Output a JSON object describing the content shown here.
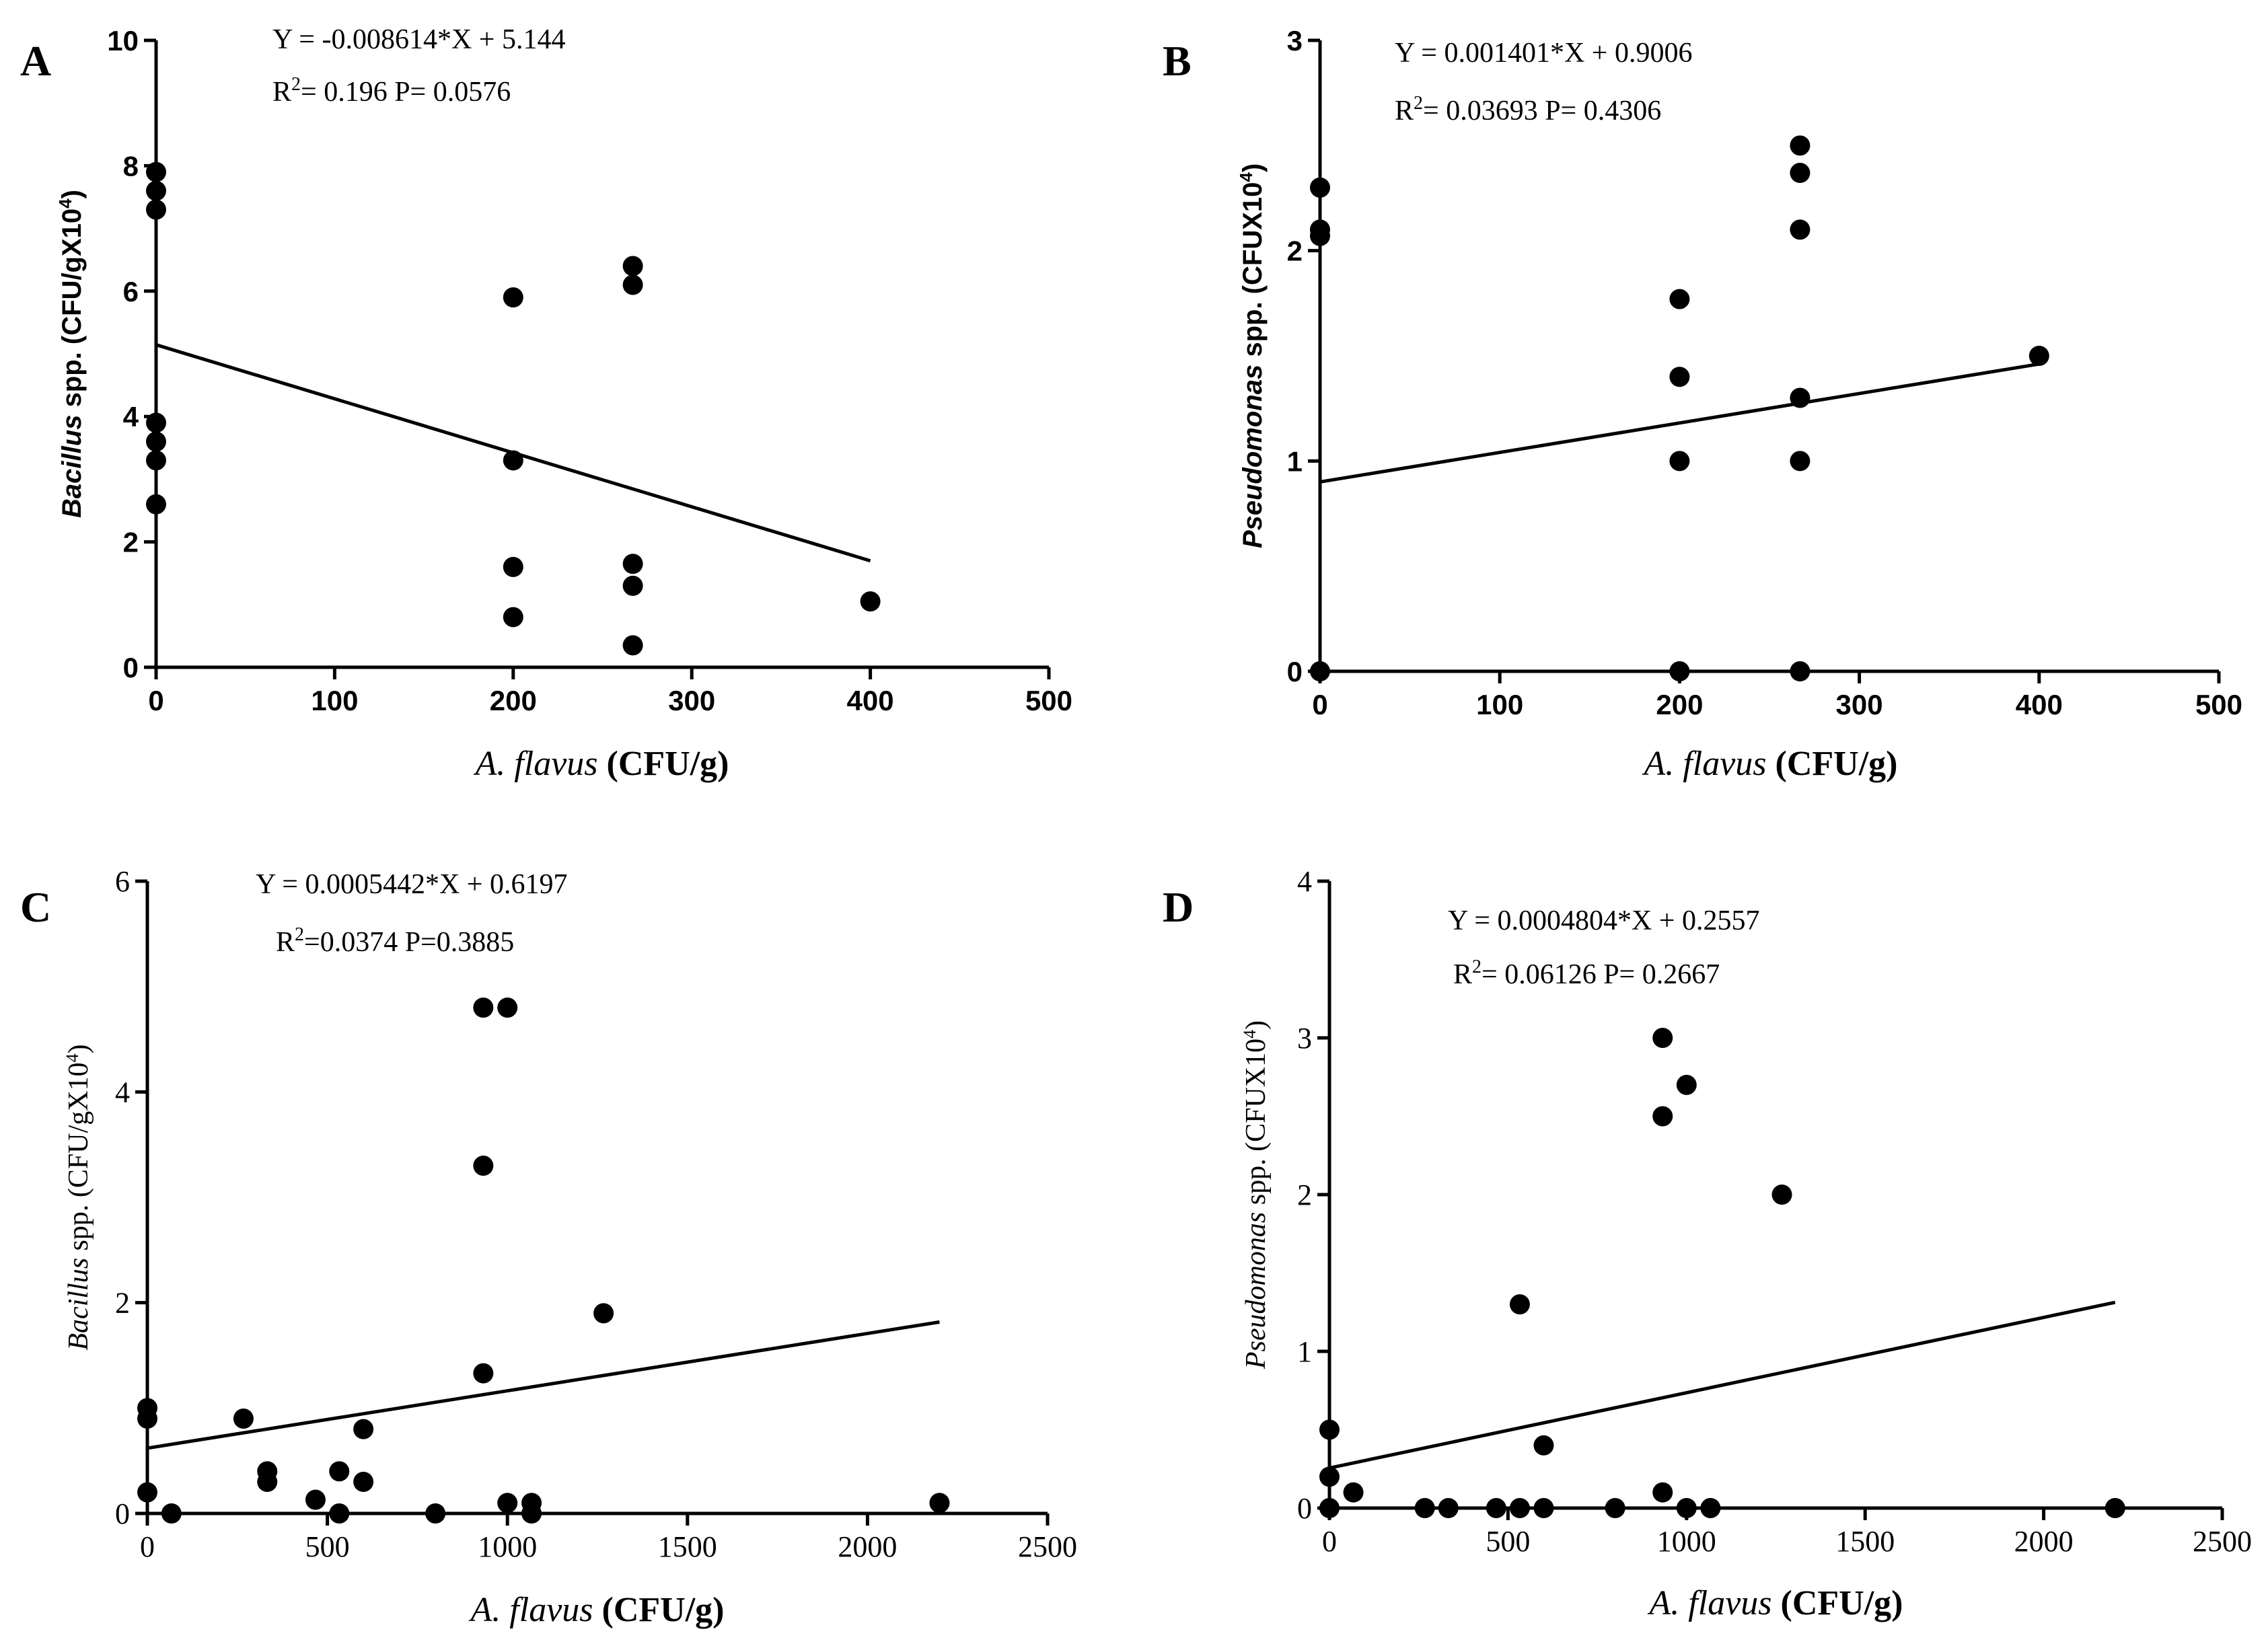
{
  "chart_data": [
    {
      "panel": "A",
      "type": "scatter",
      "equation": "Y = -0.008614*X + 5.144",
      "stats": "= 0.196   P= 0.0576",
      "r2_label": "R",
      "r2_sup": "2",
      "xlabel_italic": "A. flavus",
      "xlabel_rest": " (CFU/g)",
      "ylabel_italic": "Bacillus",
      "ylabel_rest": " spp. (CFU/gX10",
      "ylabel_sup": "4",
      "ylabel_close": ")",
      "xlim": [
        0,
        500
      ],
      "ylim": [
        0,
        10
      ],
      "xticks": [
        "0",
        "100",
        "200",
        "300",
        "400",
        "500"
      ],
      "yticks": [
        "0",
        "2",
        "4",
        "6",
        "8",
        "10"
      ],
      "xtick_values": [
        0,
        100,
        200,
        300,
        400,
        500
      ],
      "ytick_values": [
        0,
        2,
        4,
        6,
        8,
        10
      ],
      "regression": {
        "slope": -0.008614,
        "intercept": 5.144,
        "x_range": [
          0,
          400
        ]
      },
      "points": [
        [
          0,
          7.9
        ],
        [
          0,
          7.6
        ],
        [
          0,
          7.3
        ],
        [
          0,
          3.9
        ],
        [
          0,
          3.6
        ],
        [
          0,
          3.3
        ],
        [
          0,
          2.6
        ],
        [
          200,
          5.9
        ],
        [
          200,
          3.3
        ],
        [
          200,
          1.6
        ],
        [
          200,
          0.8
        ],
        [
          267,
          6.4
        ],
        [
          267,
          6.1
        ],
        [
          267,
          1.65
        ],
        [
          267,
          1.3
        ],
        [
          267,
          0.35
        ],
        [
          400,
          1.05
        ]
      ]
    },
    {
      "panel": "B",
      "type": "scatter",
      "equation": "Y = 0.001401*X + 0.9006",
      "stats": "= 0.03693   P= 0.4306",
      "r2_label": "R",
      "r2_sup": "2",
      "xlabel_italic": "A. flavus",
      "xlabel_rest": " (CFU/g)",
      "ylabel_italic": "Pseudomonas",
      "ylabel_rest": " spp. (CFUX10",
      "ylabel_sup": "4",
      "ylabel_close": ")",
      "xlim": [
        0,
        500
      ],
      "ylim": [
        0,
        3
      ],
      "xticks": [
        "0",
        "100",
        "200",
        "300",
        "400",
        "500"
      ],
      "yticks": [
        "0",
        "1",
        "2",
        "3"
      ],
      "xtick_values": [
        0,
        100,
        200,
        300,
        400,
        500
      ],
      "ytick_values": [
        0,
        1,
        2,
        3
      ],
      "regression": {
        "slope": 0.001401,
        "intercept": 0.9006,
        "x_range": [
          0,
          400
        ]
      },
      "points": [
        [
          0,
          2.3
        ],
        [
          0,
          2.1
        ],
        [
          0,
          2.07
        ],
        [
          0,
          0
        ],
        [
          200,
          1.77
        ],
        [
          200,
          1.4
        ],
        [
          200,
          1.0
        ],
        [
          200,
          0
        ],
        [
          267,
          2.5
        ],
        [
          267,
          2.37
        ],
        [
          267,
          2.1
        ],
        [
          267,
          1.3
        ],
        [
          267,
          1.0
        ],
        [
          267,
          0
        ],
        [
          400,
          1.5
        ]
      ]
    },
    {
      "panel": "C",
      "type": "scatter",
      "equation": "Y = 0.0005442*X + 0.6197",
      "stats": "=0.0374  P=0.3885",
      "r2_label": "R",
      "r2_sup": "2",
      "xlabel_italic": "A. flavus",
      "xlabel_rest": " (CFU/g)",
      "ylabel_italic": "Bacillus",
      "ylabel_rest": " spp. (CFU/gX10",
      "ylabel_sup": "4",
      "ylabel_close": ")",
      "xlim": [
        0,
        2500
      ],
      "ylim": [
        0,
        6
      ],
      "xticks": [
        "0",
        "500",
        "1000",
        "1500",
        "2000",
        "2500"
      ],
      "yticks": [
        "0",
        "2",
        "4",
        "6"
      ],
      "xtick_values": [
        0,
        500,
        1000,
        1500,
        2000,
        2500
      ],
      "ytick_values": [
        0,
        2,
        4,
        6
      ],
      "regression": {
        "slope": 0.0005442,
        "intercept": 0.6197,
        "x_range": [
          0,
          2200
        ]
      },
      "points": [
        [
          0,
          1.0
        ],
        [
          0,
          0.9
        ],
        [
          0,
          0.2
        ],
        [
          67,
          0.0
        ],
        [
          267,
          0.9
        ],
        [
          333,
          0.4
        ],
        [
          333,
          0.3
        ],
        [
          467,
          0.13
        ],
        [
          533,
          0.4
        ],
        [
          533,
          0.0
        ],
        [
          600,
          0.8
        ],
        [
          600,
          0.3
        ],
        [
          800,
          0.0
        ],
        [
          933,
          4.8
        ],
        [
          933,
          3.3
        ],
        [
          933,
          1.33
        ],
        [
          1000,
          4.8
        ],
        [
          1000,
          0.1
        ],
        [
          1067,
          0.1
        ],
        [
          1067,
          0.0
        ],
        [
          1267,
          1.9
        ],
        [
          2200,
          0.1
        ]
      ]
    },
    {
      "panel": "D",
      "type": "scatter",
      "equation": "Y = 0.0004804*X + 0.2557",
      "stats": "= 0.06126   P= 0.2667",
      "r2_label": "R",
      "r2_sup": "2",
      "xlabel_italic": "A. flavus",
      "xlabel_rest": " (CFU/g)",
      "ylabel_italic": "Pseudomonas",
      "ylabel_rest": " spp. (CFUX10",
      "ylabel_sup": "4",
      "ylabel_close": ")",
      "xlim": [
        0,
        2500
      ],
      "ylim": [
        0,
        4
      ],
      "xticks": [
        "0",
        "500",
        "1000",
        "1500",
        "2000",
        "2500"
      ],
      "yticks": [
        "0",
        "1",
        "2",
        "3",
        "4"
      ],
      "xtick_values": [
        0,
        500,
        1000,
        1500,
        2000,
        2500
      ],
      "ytick_values": [
        0,
        1,
        2,
        3,
        4
      ],
      "regression": {
        "slope": 0.0004804,
        "intercept": 0.2557,
        "x_range": [
          0,
          2200
        ]
      },
      "points": [
        [
          0,
          0.5
        ],
        [
          0,
          0.2
        ],
        [
          0,
          0.0
        ],
        [
          67,
          0.1
        ],
        [
          267,
          0.0
        ],
        [
          333,
          0.0
        ],
        [
          467,
          0.0
        ],
        [
          533,
          1.3
        ],
        [
          533,
          0.0
        ],
        [
          600,
          0.4
        ],
        [
          600,
          0.0
        ],
        [
          800,
          0.0
        ],
        [
          933,
          3.0
        ],
        [
          933,
          2.5
        ],
        [
          933,
          0.1
        ],
        [
          1000,
          2.7
        ],
        [
          1000,
          0.0
        ],
        [
          1067,
          0.0
        ],
        [
          1267,
          2.0
        ],
        [
          2200,
          0.0
        ]
      ]
    }
  ]
}
